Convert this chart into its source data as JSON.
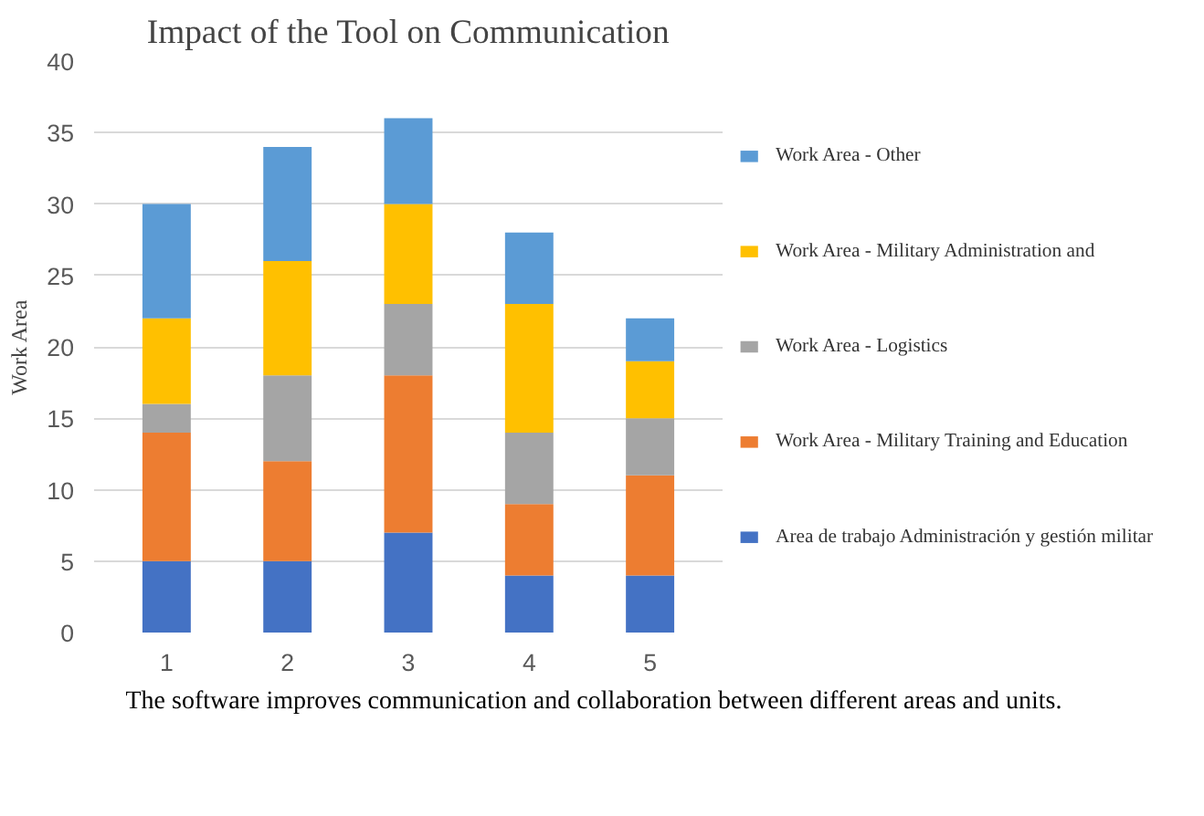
{
  "chart_data": {
    "type": "bar",
    "stacked": true,
    "title": "Impact of the Tool on Communication",
    "ylabel": "Work Area",
    "categories": [
      "1",
      "2",
      "3",
      "4",
      "5"
    ],
    "series": [
      {
        "name": "Area de trabajo Administración y gestión militar",
        "color": "#4472c4",
        "values": [
          5,
          5,
          7,
          4,
          4
        ]
      },
      {
        "name": "Work Area - Military Training and Education",
        "color": "#ed7d31",
        "values": [
          9,
          7,
          11,
          5,
          7
        ]
      },
      {
        "name": "Work Area - Logistics",
        "color": "#a5a5a5",
        "values": [
          2,
          6,
          5,
          5,
          4
        ]
      },
      {
        "name": "Work Area - Military Administration and",
        "color": "#ffc000",
        "values": [
          6,
          8,
          7,
          9,
          4
        ]
      },
      {
        "name": "Work Area - Other",
        "color": "#5b9bd5",
        "values": [
          8,
          8,
          6,
          5,
          3
        ]
      }
    ],
    "ylim": [
      0,
      40
    ],
    "yticks": [
      0,
      5,
      10,
      15,
      20,
      25,
      30,
      35,
      40
    ],
    "grid": "y",
    "legend": "right",
    "annotations": [
      "The software improves communication and collaboration between different areas and units."
    ]
  }
}
